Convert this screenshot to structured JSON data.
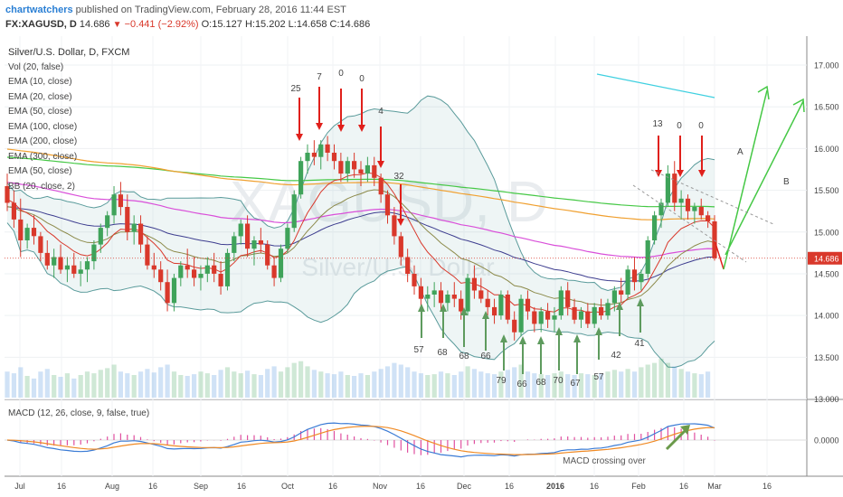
{
  "header": {
    "publisher": "chartwatchers",
    "published_text": "published on TradingView.com, February 28, 2016 11:44 EST",
    "symbol": "FX:XAGUSD, D",
    "last": "14.686",
    "change": "−0.441 (−2.92%)",
    "open": "O:15.127",
    "high": "H:15.202",
    "low": "L:14.658",
    "close": "C:14.686"
  },
  "indicators": {
    "title": "Silver/U.S. Dollar, D, FXCM",
    "items": [
      "Vol (20, false)",
      "EMA (10, close)",
      "EMA (20, close)",
      "EMA (50, close)",
      "EMA (100, close)",
      "EMA (200, close)",
      "EMA (300, close)",
      "EMA (50, close)",
      "BB (20, close, 2)"
    ]
  },
  "macd_label": "MACD (12, 26, close, 9, false, true)",
  "watermark": {
    "symbol": "XAGUSD, D",
    "name": "Silver/U.S. Dollar"
  },
  "colors": {
    "up_candle": "#3fa35a",
    "down_candle": "#d9382b",
    "bb": "#5a9b9b",
    "ema10": "#d9382b",
    "ema20": "#8c8a4a",
    "ema50": "#3d3d8f",
    "ema100": "#d94fd9",
    "ema200": "#f0a030",
    "ema300": "#45c845",
    "ema_long": "#3fd0e0",
    "macd_line": "#3a7bd5",
    "signal_line": "#f08a24"
  },
  "chart_data": [
    {
      "type": "candlestick",
      "title": "Silver/U.S. Dollar, D, FXCM",
      "ylim": [
        12.7,
        17.2
      ],
      "y_ticks": [
        "17.000",
        "16.500",
        "16.000",
        "15.500",
        "15.000",
        "14.500",
        "14.000",
        "13.500",
        "13.000"
      ],
      "x_ticks": [
        "Jul",
        "16",
        "Aug",
        "16",
        "Sep",
        "16",
        "Oct",
        "16",
        "Nov",
        "16",
        "Dec",
        "16",
        "2016",
        "16",
        "Feb",
        "16",
        "Mar",
        "16"
      ],
      "last_price_label": "14.686",
      "ohlc": [
        [
          15.55,
          15.7,
          15.25,
          15.35
        ],
        [
          15.35,
          15.5,
          15.05,
          15.15
        ],
        [
          15.15,
          15.4,
          14.7,
          14.9
        ],
        [
          14.9,
          15.1,
          14.8,
          15.05
        ],
        [
          15.05,
          15.2,
          14.85,
          14.95
        ],
        [
          14.95,
          15.0,
          14.65,
          14.75
        ],
        [
          14.75,
          14.9,
          14.55,
          14.6
        ],
        [
          14.6,
          14.8,
          14.45,
          14.7
        ],
        [
          14.7,
          14.85,
          14.5,
          14.55
        ],
        [
          14.55,
          14.7,
          14.4,
          14.6
        ],
        [
          14.6,
          14.75,
          14.45,
          14.5
        ],
        [
          14.5,
          14.65,
          14.35,
          14.55
        ],
        [
          14.55,
          14.7,
          14.4,
          14.65
        ],
        [
          14.65,
          14.9,
          14.55,
          14.85
        ],
        [
          14.85,
          15.1,
          14.75,
          15.05
        ],
        [
          15.05,
          15.25,
          14.95,
          15.2
        ],
        [
          15.2,
          15.55,
          15.1,
          15.45
        ],
        [
          15.45,
          15.6,
          15.2,
          15.3
        ],
        [
          15.3,
          15.45,
          14.9,
          15.0
        ],
        [
          15.0,
          15.2,
          14.85,
          15.1
        ],
        [
          15.1,
          15.2,
          14.75,
          14.85
        ],
        [
          14.85,
          14.95,
          14.55,
          14.6
        ],
        [
          14.6,
          14.75,
          14.45,
          14.55
        ],
        [
          14.55,
          14.65,
          14.3,
          14.4
        ],
        [
          14.4,
          14.55,
          14.05,
          14.15
        ],
        [
          14.15,
          14.5,
          14.05,
          14.45
        ],
        [
          14.45,
          14.65,
          14.35,
          14.6
        ],
        [
          14.6,
          14.8,
          14.45,
          14.55
        ],
        [
          14.55,
          14.7,
          14.35,
          14.45
        ],
        [
          14.45,
          14.6,
          14.3,
          14.5
        ],
        [
          14.5,
          14.7,
          14.4,
          14.6
        ],
        [
          14.6,
          14.75,
          14.4,
          14.5
        ],
        [
          14.5,
          14.65,
          14.25,
          14.35
        ],
        [
          14.35,
          14.8,
          14.3,
          14.75
        ],
        [
          14.75,
          15.0,
          14.65,
          14.95
        ],
        [
          14.95,
          15.15,
          14.85,
          15.1
        ],
        [
          15.1,
          15.2,
          14.7,
          14.8
        ],
        [
          14.8,
          14.95,
          14.6,
          14.9
        ],
        [
          14.9,
          15.05,
          14.75,
          14.85
        ],
        [
          14.85,
          14.9,
          14.55,
          14.6
        ],
        [
          14.6,
          14.7,
          14.35,
          14.45
        ],
        [
          14.45,
          14.85,
          14.4,
          14.8
        ],
        [
          14.8,
          15.1,
          14.75,
          15.05
        ],
        [
          15.05,
          15.5,
          15.0,
          15.45
        ],
        [
          15.45,
          15.9,
          15.4,
          15.85
        ],
        [
          15.85,
          16.05,
          15.7,
          15.95
        ],
        [
          15.95,
          16.1,
          15.8,
          15.9
        ],
        [
          15.9,
          16.1,
          15.75,
          16.05
        ],
        [
          16.05,
          16.15,
          15.85,
          15.95
        ],
        [
          15.95,
          16.05,
          15.75,
          15.85
        ],
        [
          15.85,
          15.95,
          15.6,
          15.7
        ],
        [
          15.7,
          15.9,
          15.6,
          15.85
        ],
        [
          15.85,
          15.95,
          15.65,
          15.75
        ],
        [
          15.75,
          15.85,
          15.55,
          15.7
        ],
        [
          15.7,
          15.9,
          15.6,
          15.8
        ],
        [
          15.8,
          15.9,
          15.55,
          15.65
        ],
        [
          15.65,
          15.7,
          15.35,
          15.45
        ],
        [
          15.45,
          15.5,
          15.1,
          15.2
        ],
        [
          15.2,
          15.3,
          14.85,
          14.95
        ],
        [
          14.95,
          15.0,
          14.6,
          14.7
        ],
        [
          14.7,
          14.8,
          14.4,
          14.5
        ],
        [
          14.5,
          14.6,
          14.25,
          14.35
        ],
        [
          14.35,
          14.45,
          14.1,
          14.2
        ],
        [
          14.2,
          14.35,
          14.05,
          14.25
        ],
        [
          14.25,
          14.4,
          14.1,
          14.3
        ],
        [
          14.3,
          14.4,
          14.05,
          14.15
        ],
        [
          14.15,
          14.3,
          14.05,
          14.25
        ],
        [
          14.25,
          14.4,
          14.1,
          14.2
        ],
        [
          14.2,
          14.3,
          13.95,
          14.05
        ],
        [
          14.05,
          14.5,
          14.0,
          14.45
        ],
        [
          14.45,
          14.6,
          14.2,
          14.3
        ],
        [
          14.3,
          14.45,
          14.15,
          14.2
        ],
        [
          14.2,
          14.3,
          14.0,
          14.1
        ],
        [
          14.1,
          14.2,
          13.9,
          14.0
        ],
        [
          14.0,
          14.3,
          13.95,
          14.25
        ],
        [
          14.25,
          14.3,
          13.9,
          13.95
        ],
        [
          13.95,
          14.05,
          13.7,
          13.8
        ],
        [
          13.8,
          14.25,
          13.75,
          14.2
        ],
        [
          14.2,
          14.3,
          13.95,
          14.05
        ],
        [
          14.05,
          14.1,
          13.8,
          13.9
        ],
        [
          13.9,
          14.1,
          13.8,
          14.05
        ],
        [
          14.05,
          14.15,
          13.85,
          13.95
        ],
        [
          13.95,
          14.1,
          13.8,
          14.0
        ],
        [
          14.0,
          14.35,
          13.95,
          14.3
        ],
        [
          14.3,
          14.4,
          14.0,
          14.1
        ],
        [
          14.1,
          14.2,
          13.9,
          13.95
        ],
        [
          13.95,
          14.1,
          13.85,
          14.05
        ],
        [
          14.05,
          14.15,
          13.85,
          13.9
        ],
        [
          13.9,
          14.15,
          13.85,
          14.1
        ],
        [
          14.1,
          14.2,
          13.95,
          14.0
        ],
        [
          14.0,
          14.2,
          13.95,
          14.15
        ],
        [
          14.15,
          14.35,
          14.05,
          14.3
        ],
        [
          14.3,
          14.45,
          14.15,
          14.25
        ],
        [
          14.25,
          14.6,
          14.2,
          14.55
        ],
        [
          14.55,
          14.7,
          14.3,
          14.4
        ],
        [
          14.4,
          14.55,
          14.3,
          14.5
        ],
        [
          14.5,
          14.95,
          14.45,
          14.9
        ],
        [
          14.9,
          15.25,
          14.85,
          15.2
        ],
        [
          15.2,
          15.4,
          15.05,
          15.35
        ],
        [
          15.35,
          15.8,
          15.3,
          15.7
        ],
        [
          15.7,
          15.85,
          15.25,
          15.35
        ],
        [
          15.35,
          15.5,
          15.15,
          15.4
        ],
        [
          15.4,
          15.45,
          15.15,
          15.25
        ],
        [
          15.25,
          15.35,
          15.1,
          15.3
        ],
        [
          15.3,
          15.4,
          15.15,
          15.2
        ],
        [
          15.2,
          15.25,
          15.05,
          15.127
        ],
        [
          15.127,
          15.202,
          14.658,
          14.686
        ]
      ],
      "volume": [
        30,
        28,
        35,
        25,
        22,
        30,
        33,
        26,
        24,
        28,
        22,
        26,
        30,
        28,
        32,
        34,
        38,
        30,
        28,
        26,
        30,
        33,
        29,
        35,
        38,
        30,
        26,
        25,
        27,
        30,
        28,
        26,
        32,
        35,
        30,
        28,
        31,
        27,
        26,
        33,
        36,
        30,
        35,
        40,
        42,
        36,
        32,
        30,
        28,
        27,
        30,
        26,
        25,
        28,
        26,
        30,
        33,
        36,
        40,
        38,
        35,
        30,
        28,
        26,
        27,
        30,
        28,
        26,
        30,
        36,
        33,
        30,
        28,
        27,
        30,
        32,
        35,
        38,
        30,
        28,
        27,
        26,
        28,
        30,
        27,
        26,
        28,
        27,
        26,
        28,
        30,
        32,
        30,
        33,
        30,
        35,
        38,
        40,
        45,
        40,
        36,
        33,
        30,
        28,
        27,
        30
      ],
      "annotations": {
        "down_arrow_labels": [
          "25",
          "7",
          "0",
          "0",
          "4",
          "32",
          "13",
          "0",
          "0"
        ],
        "up_arrow_labels": [
          "57",
          "68",
          "68",
          "66",
          "79",
          "66",
          "68",
          "70",
          "67",
          "57",
          "42",
          "41"
        ],
        "projection_labels": [
          "A",
          "B"
        ]
      }
    },
    {
      "type": "line",
      "title": "MACD (12, 26, close, 9, false, true)",
      "y_tick": "0.0000",
      "annotation": "MACD crossing over"
    }
  ]
}
